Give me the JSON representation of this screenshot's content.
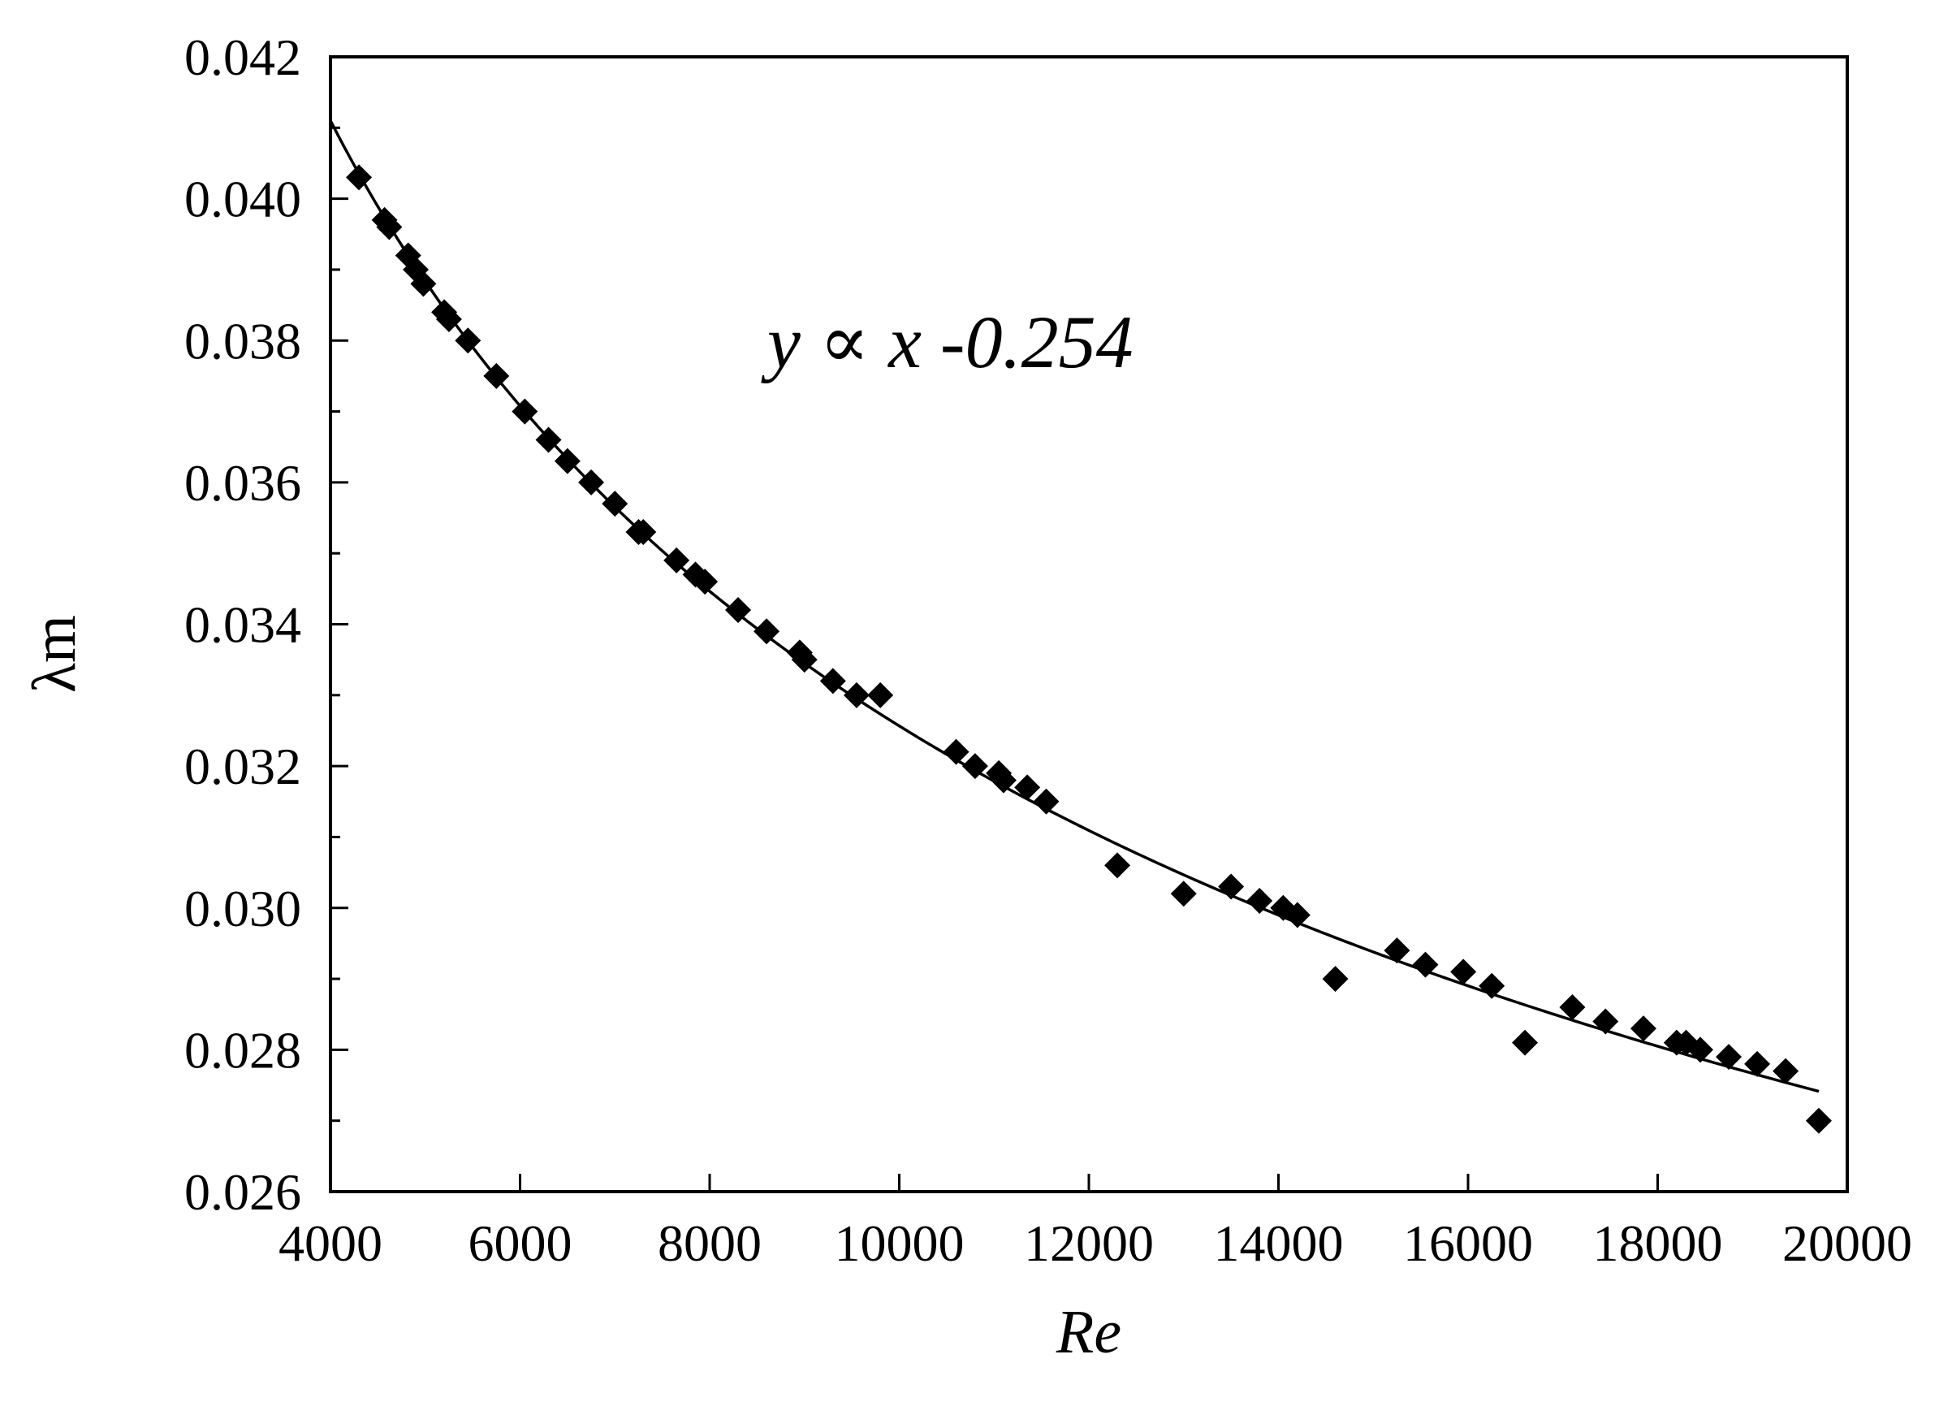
{
  "chart_data": {
    "type": "scatter",
    "xlabel": "Re",
    "ylabel": "λm",
    "xlim": [
      4000,
      20000
    ],
    "ylim": [
      0.026,
      0.042
    ],
    "x_ticks": [
      "4000",
      "6000",
      "8000",
      "10000",
      "12000",
      "14000",
      "16000",
      "18000",
      "20000"
    ],
    "y_ticks": [
      "0.026",
      "0.028",
      "0.030",
      "0.032",
      "0.034",
      "0.036",
      "0.038",
      "0.040",
      "0.042"
    ],
    "grid": false,
    "legend": "none",
    "annotation": "y ∝ x -0.254",
    "colors": {
      "marker": "#000000",
      "line": "#000000"
    },
    "fit": {
      "type": "power",
      "exponent": -0.254,
      "x_range": [
        4000,
        19700
      ],
      "y_at_x0": 0.0411
    },
    "series": [
      {
        "marker": "diamond",
        "points": [
          [
            4300,
            0.0403
          ],
          [
            4570,
            0.0397
          ],
          [
            4620,
            0.0396
          ],
          [
            4820,
            0.0392
          ],
          [
            4900,
            0.039
          ],
          [
            4980,
            0.0388
          ],
          [
            5200,
            0.0384
          ],
          [
            5250,
            0.0383
          ],
          [
            5450,
            0.038
          ],
          [
            5750,
            0.0375
          ],
          [
            6050,
            0.037
          ],
          [
            6300,
            0.0366
          ],
          [
            6500,
            0.0363
          ],
          [
            6750,
            0.036
          ],
          [
            7000,
            0.0357
          ],
          [
            7250,
            0.0353
          ],
          [
            7300,
            0.0353
          ],
          [
            7650,
            0.0349
          ],
          [
            7850,
            0.0347
          ],
          [
            7950,
            0.0346
          ],
          [
            8300,
            0.0342
          ],
          [
            8600,
            0.0339
          ],
          [
            8950,
            0.0336
          ],
          [
            9000,
            0.0335
          ],
          [
            9300,
            0.0332
          ],
          [
            9550,
            0.033
          ],
          [
            9800,
            0.033
          ],
          [
            10600,
            0.0322
          ],
          [
            10800,
            0.032
          ],
          [
            11050,
            0.0319
          ],
          [
            11100,
            0.0318
          ],
          [
            11350,
            0.0317
          ],
          [
            11550,
            0.0315
          ],
          [
            12300,
            0.0306
          ],
          [
            13000,
            0.0302
          ],
          [
            13500,
            0.0303
          ],
          [
            13800,
            0.0301
          ],
          [
            14050,
            0.03
          ],
          [
            14200,
            0.0299
          ],
          [
            14600,
            0.029
          ],
          [
            15250,
            0.0294
          ],
          [
            15550,
            0.0292
          ],
          [
            15950,
            0.0291
          ],
          [
            16250,
            0.0289
          ],
          [
            16600,
            0.0281
          ],
          [
            17100,
            0.0286
          ],
          [
            17450,
            0.0284
          ],
          [
            17850,
            0.0283
          ],
          [
            18200,
            0.0281
          ],
          [
            18300,
            0.0281
          ],
          [
            18450,
            0.028
          ],
          [
            18750,
            0.0279
          ],
          [
            19050,
            0.0278
          ],
          [
            19350,
            0.0277
          ],
          [
            19700,
            0.027
          ]
        ]
      }
    ]
  }
}
